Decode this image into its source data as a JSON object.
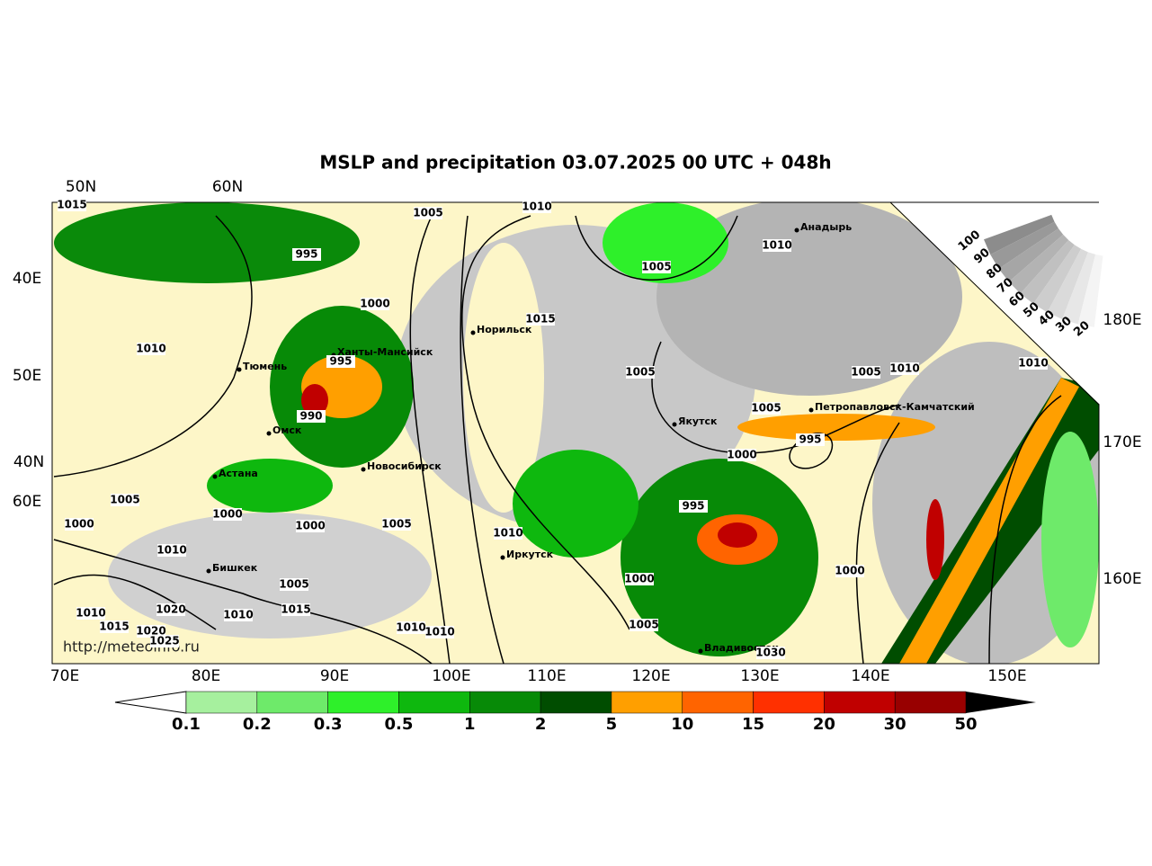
{
  "title": "MSLP and precipitation 03.07.2025 00 UTC + 048h",
  "top_labels": [
    "50N",
    "60N"
  ],
  "left_labels": [
    "40E",
    "50E",
    "40N",
    "60E"
  ],
  "right_labels": [
    "180E",
    "170E",
    "160E"
  ],
  "bottom_labels": [
    "70E",
    "80E",
    "90E",
    "100E",
    "110E",
    "120E",
    "130E",
    "140E",
    "150E"
  ],
  "cities": [
    "Анадырь",
    "Норильск",
    "Ханты-Мансийск",
    "Тюмень",
    "Якутск",
    "Петропавловск-Камчатский",
    "Омск",
    "Новосибирск",
    "Астана",
    "Бишкек",
    "Иркутск",
    "Владивосток"
  ],
  "isobar_labels": [
    "1015",
    "1005",
    "1010",
    "995",
    "1010",
    "1005",
    "1000",
    "1015",
    "1010",
    "995",
    "1005",
    "1005",
    "1010",
    "1010",
    "990",
    "1005",
    "995",
    "1000",
    "1005",
    "1000",
    "1000",
    "1005",
    "995",
    "1000",
    "1010",
    "1010",
    "1000",
    "1000",
    "1005",
    "1015",
    "1010",
    "1020",
    "1010",
    "1015",
    "1020",
    "1025",
    "1010",
    "1010",
    "1005",
    "1030"
  ],
  "colorbar": {
    "labels": [
      "0.1",
      "0.2",
      "0.3",
      "0.5",
      "1",
      "2",
      "5",
      "10",
      "15",
      "20",
      "30",
      "50"
    ],
    "colors": [
      "#a6f09e",
      "#6eea6a",
      "#2ef02a",
      "#0eb80e",
      "#078a07",
      "#004d00",
      "#ff9f00",
      "#ff6400",
      "#ff3000",
      "#c00000",
      "#980000"
    ]
  },
  "cloud_scale": [
    "100",
    "90",
    "80",
    "70",
    "60",
    "50",
    "40",
    "30",
    "20"
  ],
  "source": "http://meteoinfo.ru"
}
